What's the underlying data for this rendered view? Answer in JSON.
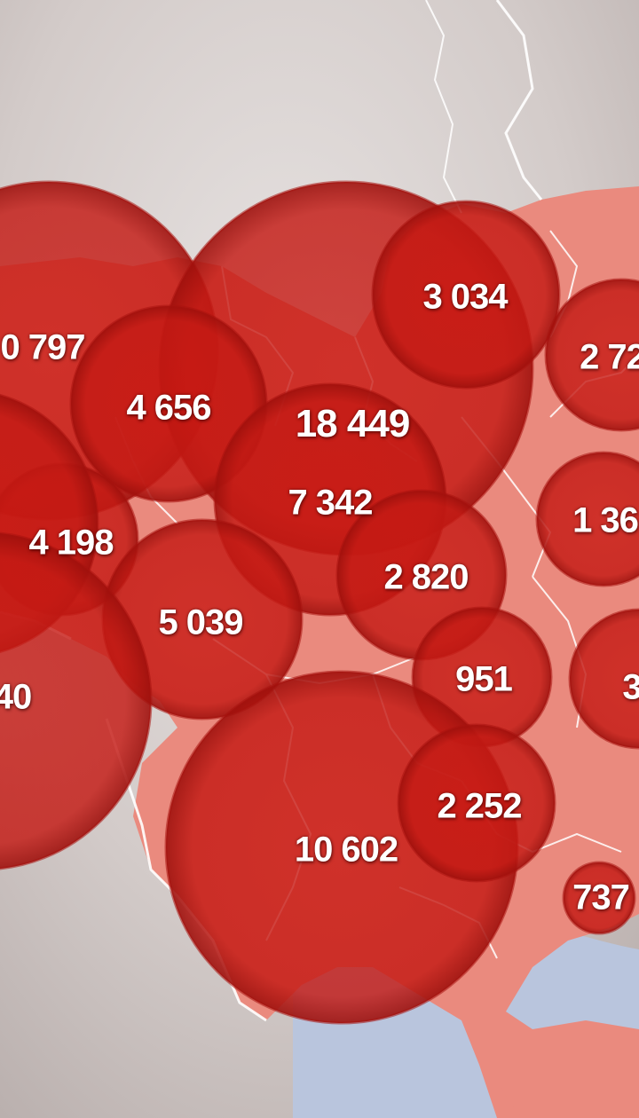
{
  "colors": {
    "background_land": "#d9d2d0",
    "region_fill": "#e9897d",
    "bubble_fill": "#c41a14",
    "bubble_stroke": "#b0120e",
    "border_line": "#ffffff",
    "sea": "#b7c4dc",
    "label_text": "#ffffff"
  },
  "bubbles": [
    {
      "label": "0 797"
    },
    {
      "label": "4 656"
    },
    {
      "label": "18 449"
    },
    {
      "label": "3 034"
    },
    {
      "label": "2 72"
    },
    {
      "label": "7 342"
    },
    {
      "label": "4 198"
    },
    {
      "label": "1 36"
    },
    {
      "label": "2 820"
    },
    {
      "label": "5 039"
    },
    {
      "label": "951"
    },
    {
      "label": "40"
    },
    {
      "label": "3"
    },
    {
      "label": "2 252"
    },
    {
      "label": "10 602"
    },
    {
      "label": "737"
    }
  ]
}
